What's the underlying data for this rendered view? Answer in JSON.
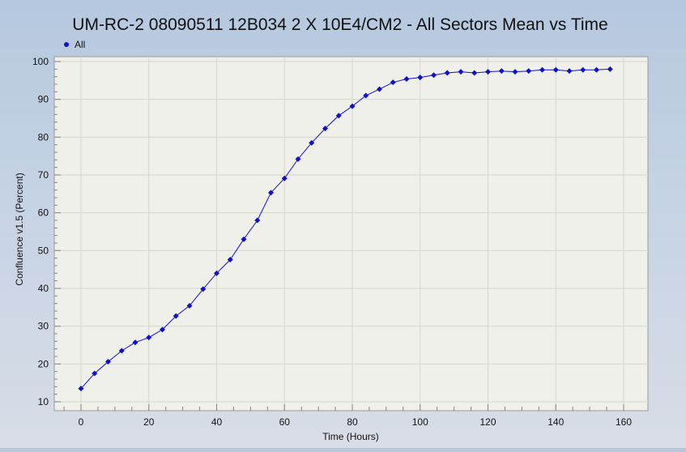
{
  "chart_data": {
    "type": "line",
    "title": "UM-RC-2 08090511 12B034 2 X 10E4/CM2 - All Sectors Mean vs Time",
    "xlabel": "Time (Hours)",
    "ylabel": "Confluence v1.5 (Percent)",
    "xlim": [
      -5,
      162
    ],
    "ylim": [
      10,
      100
    ],
    "xticks": [
      0,
      20,
      40,
      60,
      80,
      100,
      120,
      140,
      160
    ],
    "yticks": [
      10,
      20,
      30,
      40,
      50,
      60,
      70,
      80,
      90,
      100
    ],
    "grid": true,
    "legend_position": "top-left",
    "colors": {
      "series": "#1010c8",
      "plot_background": "#f0f0ea",
      "grid": "#d6d6d0",
      "axis": "#808080"
    },
    "series": [
      {
        "name": "All",
        "x": [
          0,
          4,
          8,
          12,
          16,
          20,
          24,
          28,
          32,
          36,
          40,
          44,
          48,
          52,
          56,
          60,
          64,
          68,
          72,
          76,
          80,
          84,
          88,
          92,
          96,
          100,
          104,
          108,
          112,
          116,
          120,
          124,
          128,
          132,
          136,
          140,
          144,
          148,
          152,
          156
        ],
        "values": [
          13.5,
          17.5,
          20.6,
          23.5,
          25.7,
          27.0,
          29.1,
          32.7,
          35.4,
          39.8,
          44.0,
          47.6,
          53.0,
          58.0,
          65.3,
          69.1,
          74.2,
          78.5,
          82.3,
          85.7,
          88.2,
          91.0,
          92.7,
          94.5,
          95.4,
          95.8,
          96.4,
          97.0,
          97.3,
          97.0,
          97.3,
          97.5,
          97.3,
          97.5,
          97.8,
          97.8,
          97.5,
          97.8,
          97.8,
          98.0
        ]
      }
    ]
  }
}
